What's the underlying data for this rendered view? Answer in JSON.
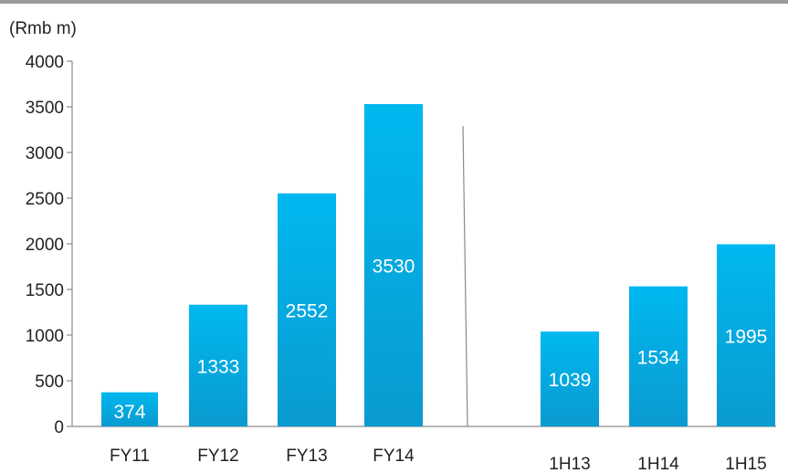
{
  "chart_data": {
    "type": "bar",
    "ylabel": "(Rmb m)",
    "ylim": [
      0,
      4000
    ],
    "yticks": [
      0,
      500,
      1000,
      1500,
      2000,
      2500,
      3000,
      3500,
      4000
    ],
    "categories": [
      "FY11",
      "FY12",
      "FY13",
      "FY14",
      "1H13",
      "1H14",
      "1H15"
    ],
    "values": [
      374,
      1333,
      2552,
      3530,
      1039,
      1534,
      1995
    ],
    "data_labels": [
      "374",
      "1333",
      "2552",
      "3530",
      "1039",
      "1534",
      "1995"
    ],
    "groups": [
      {
        "categories": [
          "FY11",
          "FY12",
          "FY13",
          "FY14"
        ]
      },
      {
        "categories": [
          "1H13",
          "1H14",
          "1H15"
        ]
      }
    ],
    "grid": false,
    "bar_color_top": "#00b8f0",
    "bar_color_bottom": "#0a9ad0"
  }
}
